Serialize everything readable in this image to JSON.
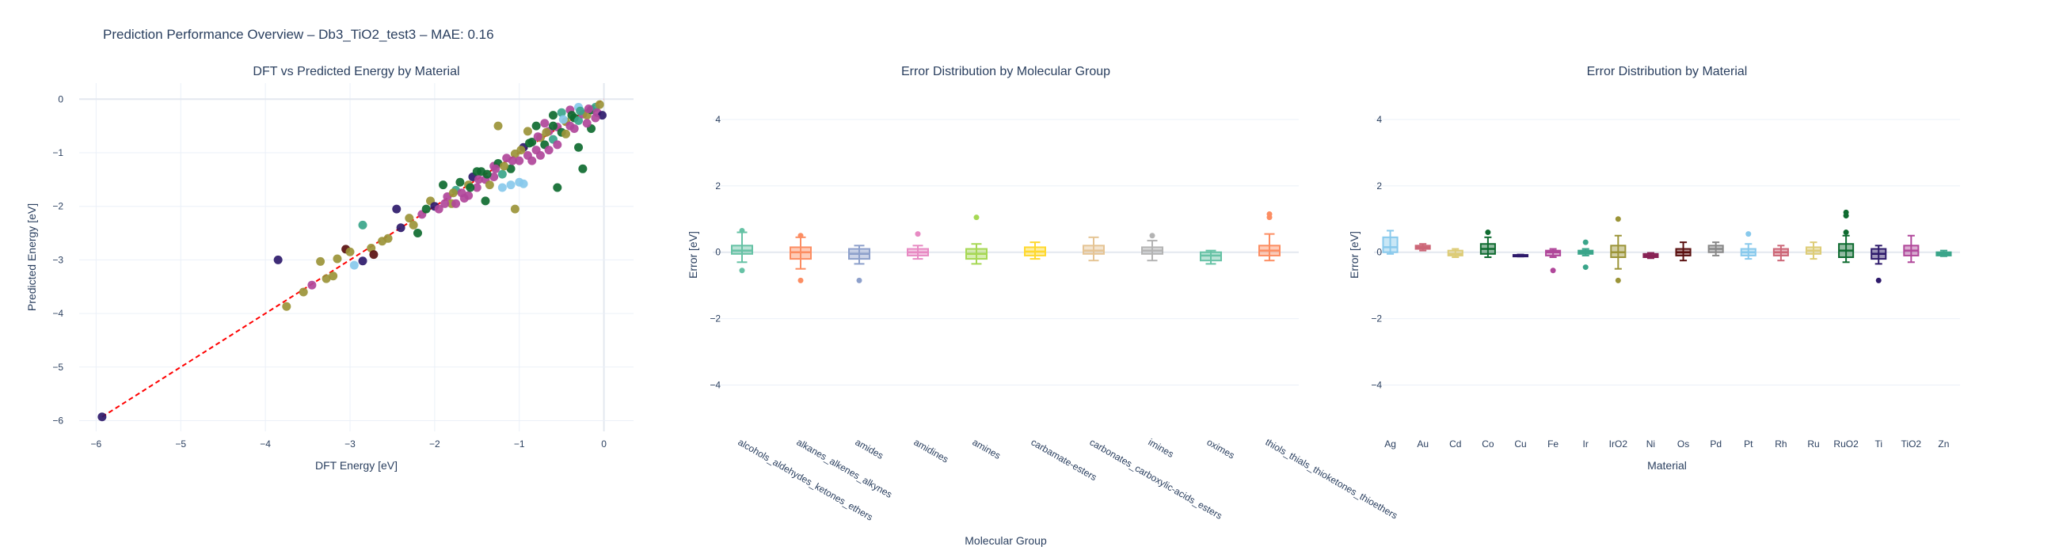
{
  "page": {
    "title": "Prediction Performance Overview – Db3_TiO2_test3 – MAE: 0.16"
  },
  "colors": {
    "text": "#2a3f5f",
    "grid": "#ebf0f8",
    "identity_line": "#ff0000"
  },
  "chart_data": [
    {
      "type": "scatter",
      "title": "DFT vs Predicted Energy by Material",
      "xlabel": "DFT Energy [eV]",
      "ylabel": "Predicted Energy [eV]",
      "xlim": [
        -6.2,
        0.35
      ],
      "ylim": [
        -6.2,
        0.3
      ],
      "xticks": [
        -6,
        -5,
        -4,
        -3,
        -2,
        -1,
        0
      ],
      "yticks": [
        -6,
        -5,
        -4,
        -3,
        -2,
        -1,
        0
      ],
      "grid": true,
      "identity_line": {
        "x": [
          -5.93,
          0
        ],
        "y": [
          -5.93,
          0
        ]
      },
      "points": [
        {
          "x": -5.93,
          "y": -5.93,
          "c": "#2e1a6b"
        },
        {
          "x": -3.85,
          "y": -3.0,
          "c": "#2e1a6b"
        },
        {
          "x": -3.75,
          "y": -3.87,
          "c": "#9b9438"
        },
        {
          "x": -3.55,
          "y": -3.6,
          "c": "#9b9438"
        },
        {
          "x": -3.45,
          "y": -3.47,
          "c": "#b0479a"
        },
        {
          "x": -3.35,
          "y": -3.03,
          "c": "#9b9438"
        },
        {
          "x": -3.28,
          "y": -3.35,
          "c": "#9b9438"
        },
        {
          "x": -3.2,
          "y": -3.3,
          "c": "#9b9438"
        },
        {
          "x": -3.15,
          "y": -2.98,
          "c": "#9b9438"
        },
        {
          "x": -3.05,
          "y": -2.8,
          "c": "#5a1010"
        },
        {
          "x": -3.0,
          "y": -2.85,
          "c": "#9b9438"
        },
        {
          "x": -2.95,
          "y": -3.1,
          "c": "#88c9ec"
        },
        {
          "x": -2.85,
          "y": -2.35,
          "c": "#3aa58a"
        },
        {
          "x": -2.85,
          "y": -3.02,
          "c": "#2e1a6b"
        },
        {
          "x": -2.75,
          "y": -2.78,
          "c": "#9b9438"
        },
        {
          "x": -2.72,
          "y": -2.9,
          "c": "#5a1010"
        },
        {
          "x": -2.62,
          "y": -2.65,
          "c": "#9b9438"
        },
        {
          "x": -2.45,
          "y": -2.05,
          "c": "#2e1a6b"
        },
        {
          "x": -2.4,
          "y": -2.4,
          "c": "#2e1a6b"
        },
        {
          "x": -2.3,
          "y": -2.22,
          "c": "#9b9438"
        },
        {
          "x": -2.2,
          "y": -2.5,
          "c": "#0f6b30"
        },
        {
          "x": -2.15,
          "y": -2.15,
          "c": "#b0479a"
        },
        {
          "x": -2.05,
          "y": -1.9,
          "c": "#9b9438"
        },
        {
          "x": -2.0,
          "y": -2.0,
          "c": "#2e1a6b"
        },
        {
          "x": -1.95,
          "y": -2.05,
          "c": "#b0479a"
        },
        {
          "x": -1.9,
          "y": -1.6,
          "c": "#0f6b30"
        },
        {
          "x": -1.85,
          "y": -1.82,
          "c": "#b0479a"
        },
        {
          "x": -1.8,
          "y": -1.95,
          "c": "#9b9438"
        },
        {
          "x": -1.75,
          "y": -1.7,
          "c": "#3aa58a"
        },
        {
          "x": -1.7,
          "y": -1.55,
          "c": "#0f6b30"
        },
        {
          "x": -1.65,
          "y": -1.85,
          "c": "#b0479a"
        },
        {
          "x": -1.6,
          "y": -1.6,
          "c": "#9b9438"
        },
        {
          "x": -1.55,
          "y": -1.45,
          "c": "#2e1a6b"
        },
        {
          "x": -1.5,
          "y": -1.65,
          "c": "#b0479a"
        },
        {
          "x": -1.45,
          "y": -1.35,
          "c": "#0f6b30"
        },
        {
          "x": -1.4,
          "y": -1.5,
          "c": "#b0479a"
        },
        {
          "x": -1.35,
          "y": -1.6,
          "c": "#9b9438"
        },
        {
          "x": -1.3,
          "y": -1.25,
          "c": "#b0479a"
        },
        {
          "x": -1.25,
          "y": -1.2,
          "c": "#0f6b30"
        },
        {
          "x": -1.2,
          "y": -1.4,
          "c": "#3aa58a"
        },
        {
          "x": -1.15,
          "y": -1.1,
          "c": "#b0479a"
        },
        {
          "x": -1.1,
          "y": -1.3,
          "c": "#0f6b30"
        },
        {
          "x": -1.05,
          "y": -1.02,
          "c": "#9b9438"
        },
        {
          "x": -1.0,
          "y": -1.15,
          "c": "#b0479a"
        },
        {
          "x": -0.95,
          "y": -0.9,
          "c": "#2e1a6b"
        },
        {
          "x": -0.9,
          "y": -1.05,
          "c": "#b0479a"
        },
        {
          "x": -0.85,
          "y": -0.8,
          "c": "#0f6b30"
        },
        {
          "x": -0.8,
          "y": -0.95,
          "c": "#b0479a"
        },
        {
          "x": -0.75,
          "y": -0.72,
          "c": "#9b9438"
        },
        {
          "x": -0.7,
          "y": -0.85,
          "c": "#0f6b30"
        },
        {
          "x": -0.65,
          "y": -0.6,
          "c": "#b0479a"
        },
        {
          "x": -0.6,
          "y": -0.75,
          "c": "#3aa58a"
        },
        {
          "x": -0.55,
          "y": -0.52,
          "c": "#b0479a"
        },
        {
          "x": -0.5,
          "y": -0.62,
          "c": "#0f6b30"
        },
        {
          "x": -0.45,
          "y": -0.42,
          "c": "#9b9438"
        },
        {
          "x": -0.4,
          "y": -0.5,
          "c": "#b0479a"
        },
        {
          "x": -0.35,
          "y": -0.35,
          "c": "#0f6b30"
        },
        {
          "x": -0.3,
          "y": -0.4,
          "c": "#3aa58a"
        },
        {
          "x": -0.25,
          "y": -0.28,
          "c": "#b0479a"
        },
        {
          "x": -0.2,
          "y": -0.3,
          "c": "#9b9438"
        },
        {
          "x": -0.15,
          "y": -0.2,
          "c": "#0f6b30"
        },
        {
          "x": -0.1,
          "y": -0.15,
          "c": "#3aa58a"
        },
        {
          "x": -0.08,
          "y": -0.25,
          "c": "#b0479a"
        },
        {
          "x": -0.05,
          "y": -0.1,
          "c": "#9b9438"
        },
        {
          "x": -0.02,
          "y": -0.3,
          "c": "#2e1a6b"
        },
        {
          "x": -1.2,
          "y": -1.65,
          "c": "#88c9ec"
        },
        {
          "x": -1.1,
          "y": -1.6,
          "c": "#88c9ec"
        },
        {
          "x": -1.0,
          "y": -1.55,
          "c": "#88c9ec"
        },
        {
          "x": -0.95,
          "y": -1.58,
          "c": "#88c9ec"
        },
        {
          "x": -1.05,
          "y": -2.05,
          "c": "#9b9438"
        },
        {
          "x": -1.4,
          "y": -1.9,
          "c": "#0f6b30"
        },
        {
          "x": -1.25,
          "y": -0.5,
          "c": "#9b9438"
        },
        {
          "x": -0.55,
          "y": -1.65,
          "c": "#0f6b30"
        },
        {
          "x": -0.25,
          "y": -1.3,
          "c": "#0f6b30"
        },
        {
          "x": -0.3,
          "y": -0.9,
          "c": "#0f6b30"
        },
        {
          "x": -0.15,
          "y": -0.55,
          "c": "#0f6b30"
        },
        {
          "x": -0.9,
          "y": -0.6,
          "c": "#9b9438"
        },
        {
          "x": -0.8,
          "y": -0.5,
          "c": "#0f6b30"
        },
        {
          "x": -0.7,
          "y": -0.45,
          "c": "#b0479a"
        },
        {
          "x": -0.6,
          "y": -0.3,
          "c": "#0f6b30"
        },
        {
          "x": -0.5,
          "y": -0.25,
          "c": "#3aa58a"
        },
        {
          "x": -0.4,
          "y": -0.2,
          "c": "#b0479a"
        },
        {
          "x": -0.3,
          "y": -0.15,
          "c": "#88c9ec"
        },
        {
          "x": -0.35,
          "y": -0.55,
          "c": "#b0479a"
        },
        {
          "x": -0.45,
          "y": -0.65,
          "c": "#9b9438"
        },
        {
          "x": -0.55,
          "y": -0.85,
          "c": "#b0479a"
        },
        {
          "x": -0.65,
          "y": -0.95,
          "c": "#b0479a"
        },
        {
          "x": -0.75,
          "y": -1.05,
          "c": "#b0479a"
        },
        {
          "x": -0.85,
          "y": -1.15,
          "c": "#b0479a"
        },
        {
          "x": -1.3,
          "y": -1.45,
          "c": "#b0479a"
        },
        {
          "x": -1.5,
          "y": -1.35,
          "c": "#0f6b30"
        },
        {
          "x": -1.6,
          "y": -1.8,
          "c": "#b0479a"
        },
        {
          "x": -1.75,
          "y": -1.95,
          "c": "#b0479a"
        },
        {
          "x": -2.1,
          "y": -2.05,
          "c": "#0f6b30"
        },
        {
          "x": -0.2,
          "y": -0.45,
          "c": "#b0479a"
        },
        {
          "x": -0.1,
          "y": -0.35,
          "c": "#b0479a"
        },
        {
          "x": -0.6,
          "y": -0.5,
          "c": "#0f6b30"
        },
        {
          "x": -0.38,
          "y": -0.3,
          "c": "#0f6b30"
        },
        {
          "x": -0.28,
          "y": -0.22,
          "c": "#3aa58a"
        },
        {
          "x": -0.18,
          "y": -0.18,
          "c": "#b0479a"
        },
        {
          "x": -0.48,
          "y": -0.38,
          "c": "#88c9ec"
        },
        {
          "x": -0.68,
          "y": -0.62,
          "c": "#9b9438"
        },
        {
          "x": -0.78,
          "y": -0.7,
          "c": "#b0479a"
        },
        {
          "x": -0.88,
          "y": -0.82,
          "c": "#0f6b30"
        },
        {
          "x": -0.98,
          "y": -0.95,
          "c": "#9b9438"
        },
        {
          "x": -1.08,
          "y": -1.15,
          "c": "#b0479a"
        },
        {
          "x": -1.18,
          "y": -1.25,
          "c": "#9b9438"
        },
        {
          "x": -1.28,
          "y": -1.3,
          "c": "#b0479a"
        },
        {
          "x": -1.38,
          "y": -1.4,
          "c": "#0f6b30"
        },
        {
          "x": -1.48,
          "y": -1.5,
          "c": "#b0479a"
        },
        {
          "x": -1.58,
          "y": -1.65,
          "c": "#0f6b30"
        },
        {
          "x": -1.68,
          "y": -1.75,
          "c": "#b0479a"
        },
        {
          "x": -1.78,
          "y": -1.75,
          "c": "#9b9438"
        },
        {
          "x": -1.88,
          "y": -1.95,
          "c": "#b0479a"
        },
        {
          "x": -2.25,
          "y": -2.35,
          "c": "#9b9438"
        },
        {
          "x": -2.55,
          "y": -2.6,
          "c": "#9b9438"
        }
      ]
    },
    {
      "type": "box",
      "title": "Error Distribution by Molecular Group",
      "xlabel": "Molecular Group",
      "ylabel": "Error [eV]",
      "ylim": [
        -4.8,
        4.5
      ],
      "yticks": [
        -4,
        -2,
        0,
        2,
        4
      ],
      "grid": true,
      "categories": [
        "alcohols_aldehydes_ketones_ethers",
        "alkanes_alkenes_alkynes",
        "amides",
        "amidines",
        "amines",
        "carbamate-esters",
        "carbonates_carboxylic-acids_esters",
        "imines",
        "oximes",
        "thiols_thials_thioketones_thioethers"
      ],
      "series": [
        {
          "color": "#66c2a5",
          "q1": -0.05,
          "median": 0.05,
          "q3": 0.2,
          "lo": -0.3,
          "hi": 0.6,
          "out": [
            -0.55,
            0.65
          ]
        },
        {
          "color": "#fc8d62",
          "q1": -0.2,
          "median": 0.0,
          "q3": 0.15,
          "lo": -0.5,
          "hi": 0.45,
          "out": [
            -0.85,
            0.5
          ]
        },
        {
          "color": "#8da0cb",
          "q1": -0.2,
          "median": -0.05,
          "q3": 0.1,
          "lo": -0.35,
          "hi": 0.2,
          "out": [
            -0.85
          ]
        },
        {
          "color": "#e78ac3",
          "q1": -0.1,
          "median": 0.0,
          "q3": 0.1,
          "lo": -0.2,
          "hi": 0.2,
          "out": [
            0.55
          ]
        },
        {
          "color": "#a6d854",
          "q1": -0.2,
          "median": -0.05,
          "q3": 0.1,
          "lo": -0.35,
          "hi": 0.25,
          "out": [
            1.05
          ]
        },
        {
          "color": "#ffd92f",
          "q1": -0.1,
          "median": 0.02,
          "q3": 0.15,
          "lo": -0.2,
          "hi": 0.3,
          "out": []
        },
        {
          "color": "#e5c494",
          "q1": -0.05,
          "median": 0.05,
          "q3": 0.2,
          "lo": -0.25,
          "hi": 0.45,
          "out": []
        },
        {
          "color": "#b3b3b3",
          "q1": -0.05,
          "median": 0.05,
          "q3": 0.15,
          "lo": -0.25,
          "hi": 0.35,
          "out": [
            0.5
          ]
        },
        {
          "color": "#66c2a5",
          "q1": -0.25,
          "median": -0.1,
          "q3": 0.0,
          "lo": -0.35,
          "hi": 0.05,
          "out": []
        },
        {
          "color": "#fc8d62",
          "q1": -0.1,
          "median": 0.05,
          "q3": 0.2,
          "lo": -0.25,
          "hi": 0.55,
          "out": [
            1.05,
            1.15
          ]
        }
      ]
    },
    {
      "type": "box",
      "title": "Error Distribution by Material",
      "xlabel": "Material",
      "ylabel": "Error [eV]",
      "ylim": [
        -4.8,
        4.5
      ],
      "yticks": [
        -4,
        -2,
        0,
        2,
        4
      ],
      "grid": true,
      "categories": [
        "Ag",
        "Au",
        "Cd",
        "Co",
        "Cu",
        "Fe",
        "Ir",
        "IrO2",
        "Ni",
        "Os",
        "Pd",
        "Pt",
        "Rh",
        "Ru",
        "RuO2",
        "Ti",
        "TiO2",
        "Zn"
      ],
      "series": [
        {
          "color": "#88c9ec",
          "q1": 0.0,
          "median": 0.15,
          "q3": 0.45,
          "lo": -0.05,
          "hi": 0.65,
          "out": []
        },
        {
          "color": "#cc6677",
          "q1": 0.1,
          "median": 0.15,
          "q3": 0.2,
          "lo": 0.05,
          "hi": 0.25,
          "out": []
        },
        {
          "color": "#ddcc77",
          "q1": -0.1,
          "median": -0.05,
          "q3": 0.05,
          "lo": -0.15,
          "hi": 0.1,
          "out": []
        },
        {
          "color": "#0f6b30",
          "q1": -0.05,
          "median": 0.1,
          "q3": 0.25,
          "lo": -0.15,
          "hi": 0.45,
          "out": [
            0.6
          ]
        },
        {
          "color": "#2e1a6b",
          "q1": -0.12,
          "median": -0.1,
          "q3": -0.08,
          "lo": -0.13,
          "hi": -0.07,
          "out": []
        },
        {
          "color": "#b0479a",
          "q1": -0.1,
          "median": 0.0,
          "q3": 0.05,
          "lo": -0.15,
          "hi": 0.1,
          "out": [
            -0.55
          ]
        },
        {
          "color": "#3aa58a",
          "q1": -0.05,
          "median": 0.0,
          "q3": 0.05,
          "lo": -0.1,
          "hi": 0.1,
          "out": [
            -0.45,
            0.3
          ]
        },
        {
          "color": "#9b9438",
          "q1": -0.15,
          "median": 0.0,
          "q3": 0.2,
          "lo": -0.5,
          "hi": 0.5,
          "out": [
            -0.85,
            1.0
          ]
        },
        {
          "color": "#882255",
          "q1": -0.15,
          "median": -0.1,
          "q3": -0.05,
          "lo": -0.18,
          "hi": -0.02,
          "out": []
        },
        {
          "color": "#5a1010",
          "q1": -0.1,
          "median": 0.0,
          "q3": 0.1,
          "lo": -0.25,
          "hi": 0.3,
          "out": []
        },
        {
          "color": "#888888",
          "q1": 0.0,
          "median": 0.1,
          "q3": 0.2,
          "lo": -0.1,
          "hi": 0.3,
          "out": []
        },
        {
          "color": "#88c9ec",
          "q1": -0.1,
          "median": 0.0,
          "q3": 0.1,
          "lo": -0.2,
          "hi": 0.25,
          "out": [
            0.55
          ]
        },
        {
          "color": "#cc6677",
          "q1": -0.1,
          "median": 0.0,
          "q3": 0.1,
          "lo": -0.25,
          "hi": 0.2,
          "out": []
        },
        {
          "color": "#ddcc77",
          "q1": -0.05,
          "median": 0.05,
          "q3": 0.15,
          "lo": -0.2,
          "hi": 0.3,
          "out": []
        },
        {
          "color": "#0f6b30",
          "q1": -0.15,
          "median": 0.05,
          "q3": 0.25,
          "lo": -0.3,
          "hi": 0.5,
          "out": [
            0.6,
            1.1,
            1.2
          ]
        },
        {
          "color": "#2e1a6b",
          "q1": -0.2,
          "median": -0.05,
          "q3": 0.1,
          "lo": -0.35,
          "hi": 0.2,
          "out": [
            -0.85
          ]
        },
        {
          "color": "#b0479a",
          "q1": -0.1,
          "median": 0.05,
          "q3": 0.2,
          "lo": -0.3,
          "hi": 0.5,
          "out": []
        },
        {
          "color": "#3aa58a",
          "q1": -0.1,
          "median": -0.05,
          "q3": 0.0,
          "lo": -0.12,
          "hi": 0.05,
          "out": []
        }
      ]
    }
  ]
}
